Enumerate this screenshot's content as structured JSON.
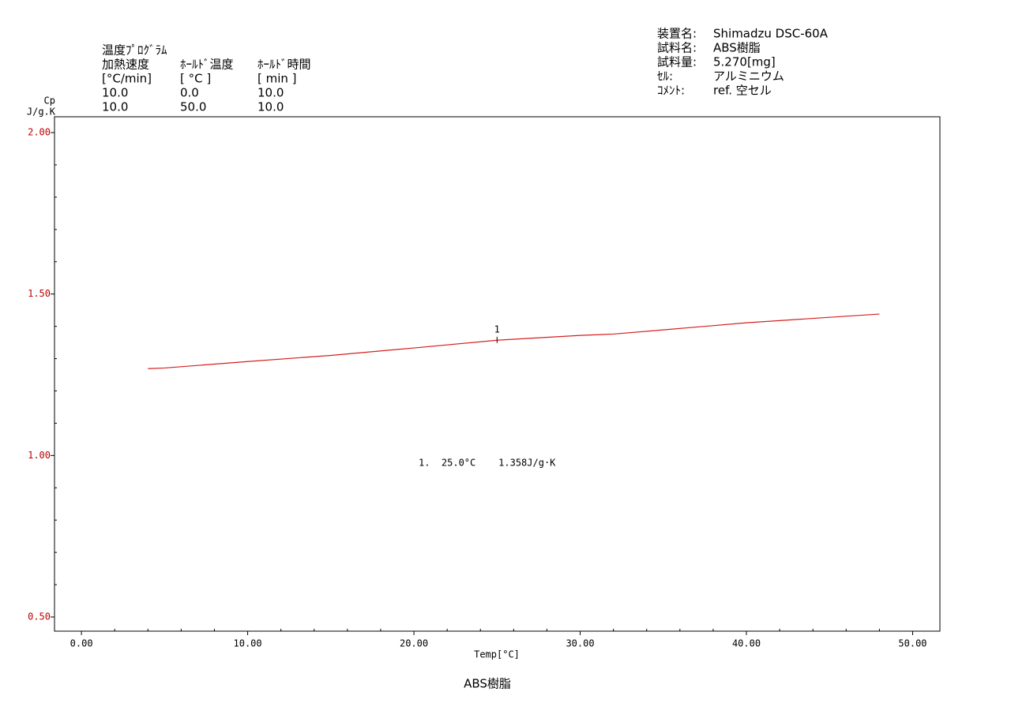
{
  "program": {
    "title": "温度ﾌﾟﾛｸﾞﾗﾑ",
    "headers": [
      "加熱速度",
      "ﾎｰﾙﾄﾞ温度",
      "ﾎｰﾙﾄﾞ時間"
    ],
    "units": [
      "[°C/min]",
      "[ °C ]",
      "[ min ]"
    ],
    "rows": [
      [
        "10.0",
        "0.0",
        "10.0"
      ],
      [
        "10.0",
        "50.0",
        "10.0"
      ]
    ]
  },
  "info": [
    {
      "label": "装置名:",
      "value": "Shimadzu DSC-60A"
    },
    {
      "label": "試料名:",
      "value": "ABS樹脂"
    },
    {
      "label": "試料量:",
      "value": "5.270[mg]"
    },
    {
      "label": "ｾﾙ:",
      "value": "アルミニウム"
    },
    {
      "label": "ｺﾒﾝﾄ:",
      "value": "ref. 空セル"
    }
  ],
  "chart_data": {
    "type": "line",
    "title": "ABS樹脂",
    "y_label": [
      "Cp",
      "J/g.K"
    ],
    "x_label": "Temp[°C]",
    "x": [
      4,
      5,
      10,
      15,
      20,
      25,
      30,
      32,
      35,
      40,
      45,
      48
    ],
    "series": [
      {
        "name": "ABS樹脂",
        "color": "#d42020",
        "values": [
          1.269,
          1.271,
          1.291,
          1.31,
          1.333,
          1.357,
          1.372,
          1.376,
          1.389,
          1.411,
          1.428,
          1.438
        ]
      }
    ],
    "xlim": [
      -1.62,
      51.64
    ],
    "ylim": [
      0.456,
      2.049
    ],
    "xticks": [
      {
        "value": 0,
        "label": "0.00"
      },
      {
        "value": 10,
        "label": "10.00"
      },
      {
        "value": 20,
        "label": "20.00"
      },
      {
        "value": 30,
        "label": "30.00"
      },
      {
        "value": 40,
        "label": "40.00"
      },
      {
        "value": 50,
        "label": "50.00"
      }
    ],
    "yticks": [
      {
        "value": 0.5,
        "label": "0.50"
      },
      {
        "value": 1,
        "label": "1.00"
      },
      {
        "value": 1.5,
        "label": "1.50"
      },
      {
        "value": 2,
        "label": "2.00"
      }
    ],
    "xminor_ticks": [
      2,
      4,
      6,
      8,
      12,
      14,
      16,
      18,
      22,
      24,
      26,
      28,
      32,
      34,
      36,
      38,
      42,
      44,
      46,
      48
    ],
    "yminor_ticks": [
      0.6,
      0.7,
      0.8,
      0.9,
      1.1,
      1.2,
      1.3,
      1.4,
      1.6,
      1.7,
      1.8,
      1.9
    ],
    "annotations": [
      {
        "x": 25,
        "y": 1.358,
        "label": "1"
      }
    ],
    "result_text": "1.  25.0°C    1.358J/g·K"
  }
}
